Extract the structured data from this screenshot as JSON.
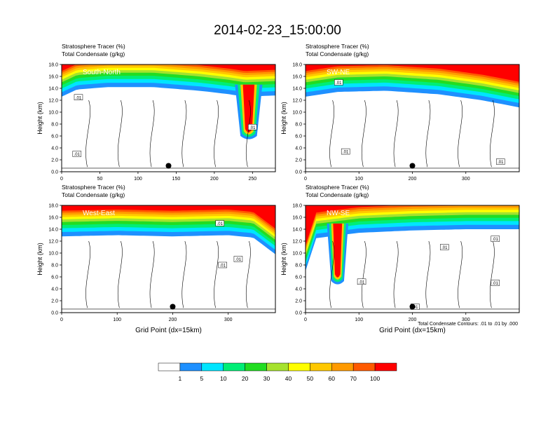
{
  "figure": {
    "title": "2014-02-23_15:00:00",
    "footnote": "Total Condensate Contours: .01 to .01 by .000"
  },
  "colorbar": {
    "labels": [
      "1",
      "5",
      "10",
      "20",
      "30",
      "40",
      "50",
      "60",
      "70",
      "100"
    ],
    "colors": [
      "#ffffff",
      "#1e90ff",
      "#00e5ff",
      "#00ee76",
      "#22dd22",
      "#a6e22e",
      "#ffff00",
      "#ffc800",
      "#ff9a00",
      "#ff5a00",
      "#ff0000"
    ]
  },
  "chart_data": [
    {
      "type": "heatmap",
      "panel_label": "South-North",
      "title_line1": "Stratosphere Tracer   (%)",
      "title_line2": "Total Condensate   (g/kg)",
      "ylabel": "Height (km)",
      "xlabel": "",
      "xlim": [
        0,
        280
      ],
      "ylim": [
        0,
        18
      ],
      "xticks": [
        "0",
        "50",
        "100",
        "150",
        "200",
        "250"
      ],
      "yticks": [
        "0.0",
        "2.0",
        "4.0",
        "6.0",
        "8.0",
        "10.0",
        "12.0",
        "14.0",
        "16.0",
        "18.0"
      ],
      "tracer_top_km": [
        [
          0,
          14.6
        ],
        [
          20,
          15.8
        ],
        [
          60,
          16.2
        ],
        [
          120,
          16.2
        ],
        [
          180,
          15.6
        ],
        [
          220,
          15.0
        ],
        [
          240,
          14.6
        ],
        [
          280,
          14.8
        ]
      ],
      "tongue": {
        "x_center": 245,
        "bottom_km": 5.5,
        "half_width": 18
      },
      "contour_labels": [
        {
          "x": 22,
          "y": 12.5,
          "text": ".01"
        },
        {
          "x": 20,
          "y": 3.0,
          "text": ".01"
        },
        {
          "x": 250,
          "y": 7.5,
          "text": ".01"
        }
      ],
      "marker": {
        "x": 140,
        "y": 1.0
      }
    },
    {
      "type": "heatmap",
      "panel_label": "SW-NE",
      "title_line1": "Stratosphere Tracer   (%)",
      "title_line2": "Total Condensate   (g/kg)",
      "ylabel": "Height (km)",
      "xlabel": "",
      "xlim": [
        0,
        400
      ],
      "ylim": [
        0,
        18
      ],
      "xticks": [
        "0",
        "100",
        "200",
        "300"
      ],
      "yticks": [
        "0.0",
        "2.0",
        "4.0",
        "6.0",
        "8.0",
        "10.0",
        "12.0",
        "14.0",
        "16.0",
        "18.0"
      ],
      "tracer_top_km": [
        [
          0,
          14.6
        ],
        [
          60,
          15.4
        ],
        [
          150,
          15.6
        ],
        [
          250,
          15.0
        ],
        [
          330,
          14.0
        ],
        [
          400,
          12.8
        ]
      ],
      "tongue": null,
      "contour_labels": [
        {
          "x": 62,
          "y": 15.0,
          "text": ".01"
        },
        {
          "x": 75,
          "y": 3.4,
          "text": ".01"
        },
        {
          "x": 365,
          "y": 1.7,
          "text": ".01"
        }
      ],
      "marker": {
        "x": 200,
        "y": 1.0
      }
    },
    {
      "type": "heatmap",
      "panel_label": "West-East",
      "title_line1": "Stratosphere Tracer   (%)",
      "title_line2": "Total Condensate   (g/kg)",
      "ylabel": "Height (km)",
      "xlabel": "Grid Point (dx=15km)",
      "xlim": [
        0,
        385
      ],
      "ylim": [
        0,
        18
      ],
      "xticks": [
        "0",
        "100",
        "200",
        "300"
      ],
      "yticks": [
        "0.0",
        "2.0",
        "4.0",
        "6.0",
        "8.0",
        "10.0",
        "12.0",
        "14.0",
        "16.0",
        "18.0"
      ],
      "tracer_top_km": [
        [
          0,
          14.8
        ],
        [
          100,
          15.0
        ],
        [
          200,
          14.8
        ],
        [
          300,
          15.0
        ],
        [
          345,
          14.6
        ],
        [
          385,
          11.8
        ]
      ],
      "tongue": null,
      "contour_labels": [
        {
          "x": 285,
          "y": 15.0,
          "text": ".01"
        },
        {
          "x": 290,
          "y": 8.0,
          "text": ".01"
        },
        {
          "x": 318,
          "y": 9.0,
          "text": ".01"
        }
      ],
      "marker": {
        "x": 200,
        "y": 1.0
      }
    },
    {
      "type": "heatmap",
      "panel_label": "NW-SE",
      "title_line1": "Stratosphere Tracer   (%)",
      "title_line2": "Total Condensate   (g/kg)",
      "ylabel": "Height (km)",
      "xlabel": "Grid Point (dx=15km)",
      "xlim": [
        0,
        400
      ],
      "ylim": [
        0,
        18
      ],
      "xticks": [
        "0",
        "100",
        "200",
        "300"
      ],
      "yticks": [
        "0.0",
        "2.0",
        "4.0",
        "6.0",
        "8.0",
        "10.0",
        "12.0",
        "14.0",
        "16.0",
        "18.0"
      ],
      "tracer_top_km": [
        [
          0,
          9.0
        ],
        [
          20,
          14.5
        ],
        [
          100,
          15.4
        ],
        [
          200,
          15.8
        ],
        [
          300,
          16.0
        ],
        [
          400,
          16.0
        ]
      ],
      "tongue": {
        "x_center": 60,
        "bottom_km": 4.8,
        "half_width": 20
      },
      "contour_labels": [
        {
          "x": 105,
          "y": 5.2,
          "text": ".01"
        },
        {
          "x": 260,
          "y": 11.0,
          "text": ".01"
        },
        {
          "x": 355,
          "y": 12.4,
          "text": ".01"
        },
        {
          "x": 355,
          "y": 5.0,
          "text": ".01"
        },
        {
          "x": 205,
          "y": 1.0,
          "text": ".01"
        }
      ],
      "marker": {
        "x": 200,
        "y": 1.0
      }
    }
  ]
}
